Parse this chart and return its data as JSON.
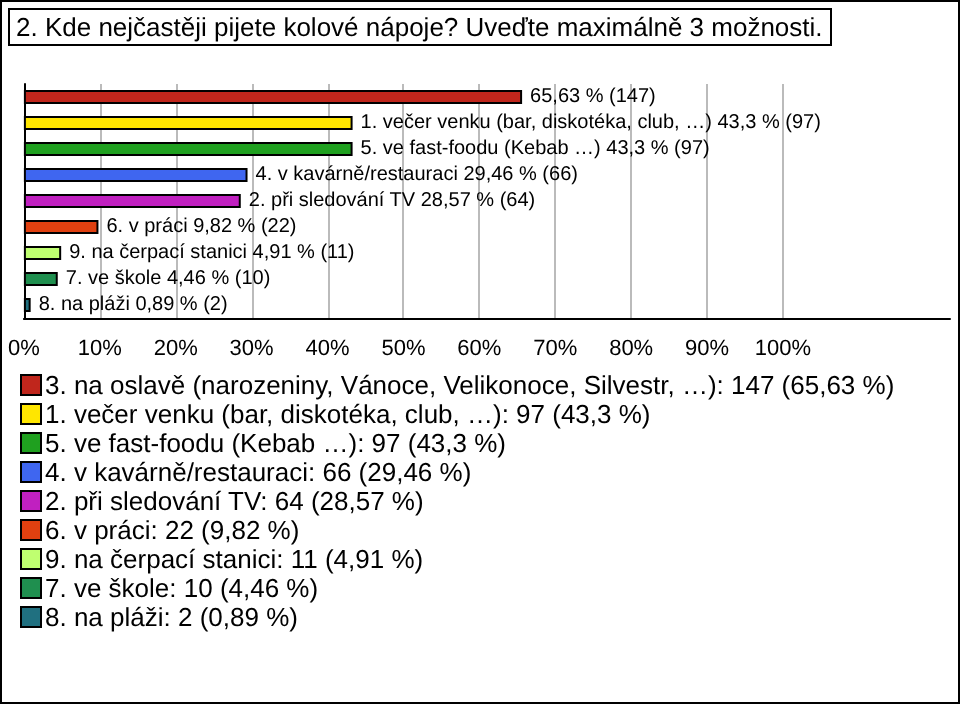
{
  "chart_data": {
    "type": "bar",
    "orientation": "horizontal",
    "title": "2. Kde nejčastěji pijete kolové nápoje? Uveďte maximálně 3 možnosti.",
    "categories": [
      null,
      null,
      null,
      null,
      null,
      null,
      null,
      null,
      null
    ],
    "series": [
      {
        "name": "3. na oslavě (narozeniny, Vánoce, Velikonoce, Silvestr, …): 147 (65,63 %)",
        "color": "#c0261c",
        "values": [
          65.63,
          null,
          null,
          null,
          null,
          null,
          null,
          null,
          null
        ],
        "value_labels": [
          "65,63 % (147)",
          null,
          null,
          null,
          null,
          null,
          null,
          null,
          null
        ]
      },
      {
        "name": "1. večer venku (bar, diskotéka, club, …): 97 (43,3 %)",
        "color": "#ffe600",
        "values": [
          null,
          43.3,
          null,
          null,
          null,
          null,
          null,
          null,
          null
        ],
        "value_labels": [
          null,
          "1. večer venku (bar, diskotéka, club, …) 43,3 % (97)",
          null,
          null,
          null,
          null,
          null,
          null,
          null
        ]
      },
      {
        "name": "5. ve fast-foodu (Kebab …): 97 (43,3 %)",
        "color": "#1fa01f",
        "values": [
          null,
          null,
          43.3,
          null,
          null,
          null,
          null,
          null,
          null
        ],
        "value_labels": [
          null,
          null,
          "5. ve fast-foodu (Kebab …) 43,3 % (97)",
          null,
          null,
          null,
          null,
          null,
          null
        ]
      },
      {
        "name": "4. v kavárně/restauraci: 66 (29,46 %)",
        "color": "#3f66f0",
        "values": [
          null,
          null,
          null,
          29.46,
          null,
          null,
          null,
          null,
          null
        ],
        "value_labels": [
          null,
          null,
          null,
          "4. v kavárně/restauraci 29,46 % (66)",
          null,
          null,
          null,
          null,
          null
        ]
      },
      {
        "name": "2. při sledování TV: 64 (28,57 %)",
        "color": "#c020c0",
        "values": [
          null,
          null,
          null,
          null,
          28.57,
          null,
          null,
          null,
          null
        ],
        "value_labels": [
          null,
          null,
          null,
          null,
          "2. při sledování TV 28,57 % (64)",
          null,
          null,
          null,
          null
        ]
      },
      {
        "name": "6. v práci: 22 (9,82 %)",
        "color": "#e04010",
        "values": [
          null,
          null,
          null,
          null,
          null,
          9.82,
          null,
          null,
          null
        ],
        "value_labels": [
          null,
          null,
          null,
          null,
          null,
          "6. v práci 9,82 % (22)",
          null,
          null,
          null
        ]
      },
      {
        "name": "9. na čerpací stanici: 11 (4,91 %)",
        "color": "#bfff70",
        "values": [
          null,
          null,
          null,
          null,
          null,
          null,
          4.91,
          null,
          null
        ],
        "value_labels": [
          null,
          null,
          null,
          null,
          null,
          null,
          "9. na čerpací stanici 4,91 % (11)",
          null,
          null
        ]
      },
      {
        "name": "7. ve škole: 10 (4,46 %)",
        "color": "#1f8f4f",
        "values": [
          null,
          null,
          null,
          null,
          null,
          null,
          null,
          4.46,
          null
        ],
        "value_labels": [
          null,
          null,
          null,
          null,
          null,
          null,
          null,
          "7. ve škole 4,46 % (10)",
          null
        ]
      },
      {
        "name": "8. na pláži: 2 (0,89 %)",
        "color": "#207080",
        "values": [
          null,
          null,
          null,
          null,
          null,
          null,
          null,
          null,
          0.89
        ],
        "value_labels": [
          null,
          null,
          null,
          null,
          null,
          null,
          null,
          null,
          "8. na pláži 0,89 % (2)"
        ]
      }
    ],
    "xlim": [
      0,
      122
    ],
    "xticks": [
      {
        "value": 0,
        "label": "0%"
      },
      {
        "value": 10,
        "label": "10%"
      },
      {
        "value": 20,
        "label": "20%"
      },
      {
        "value": 30,
        "label": "30%"
      },
      {
        "value": 40,
        "label": "40%"
      },
      {
        "value": 50,
        "label": "50%"
      },
      {
        "value": 60,
        "label": "60%"
      },
      {
        "value": 70,
        "label": "70%"
      },
      {
        "value": 80,
        "label": "80%"
      },
      {
        "value": 90,
        "label": "90%"
      },
      {
        "value": 100,
        "label": "100%"
      }
    ],
    "grid": "x",
    "legend": "bottom"
  }
}
